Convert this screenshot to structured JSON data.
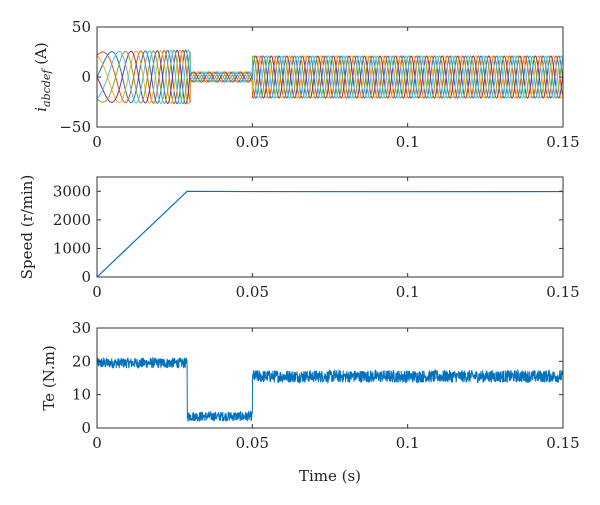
{
  "chart_data": [
    {
      "type": "line",
      "ylabel_main": "i",
      "ylabel_sub": "abcdef",
      "ylabel_unit": " (A)",
      "xlim": [
        0,
        0.15
      ],
      "ylim": [
        -50,
        50
      ],
      "xticks": [
        0,
        0.05,
        0.1,
        0.15
      ],
      "xtick_labels": [
        "0",
        "0.05",
        "0.1",
        "0.15"
      ],
      "yticks": [
        -50,
        0,
        50
      ],
      "ytick_labels": [
        "−50",
        "0",
        "50"
      ],
      "segments": [
        {
          "t0": 0,
          "t1": 0.03,
          "amp_start": 25,
          "amp_end": 27,
          "freq_start": 40,
          "freq_end": 195
        },
        {
          "t0": 0.03,
          "t1": 0.05,
          "amp_start": 5,
          "amp_end": 5,
          "freq_start": 200,
          "freq_end": 200
        },
        {
          "t0": 0.05,
          "t1": 0.15,
          "amp_start": 21,
          "amp_end": 21,
          "freq_start": 200,
          "freq_end": 200
        }
      ],
      "series": [
        {
          "phase_deg": 0,
          "color": "#1f77b4"
        },
        {
          "phase_deg": 60,
          "color": "#d95319"
        },
        {
          "phase_deg": 120,
          "color": "#edb120"
        },
        {
          "phase_deg": 180,
          "color": "#7e2f8e"
        },
        {
          "phase_deg": 240,
          "color": "#77ac30"
        },
        {
          "phase_deg": 300,
          "color": "#4dbeee"
        }
      ]
    },
    {
      "type": "line",
      "ylabel": "Speed (r/min)",
      "xlim": [
        0,
        0.15
      ],
      "ylim": [
        0,
        3500
      ],
      "xticks": [
        0,
        0.05,
        0.1,
        0.15
      ],
      "xtick_labels": [
        "0",
        "0.05",
        "0.1",
        "0.15"
      ],
      "yticks": [
        0,
        1000,
        2000,
        3000
      ],
      "ytick_labels": [
        "0",
        "1000",
        "2000",
        "3000"
      ],
      "color": "#0072bd",
      "x": [
        0,
        0.029,
        0.05,
        0.1,
        0.15
      ],
      "y": [
        0,
        3000,
        2990,
        2985,
        2990
      ]
    },
    {
      "type": "line",
      "ylabel": "Te (N.m)",
      "xlabel": "Time (s)",
      "xlim": [
        0,
        0.15
      ],
      "ylim": [
        0,
        30
      ],
      "xticks": [
        0,
        0.05,
        0.1,
        0.15
      ],
      "xtick_labels": [
        "0",
        "0.05",
        "0.1",
        "0.15"
      ],
      "yticks": [
        0,
        10,
        20,
        30
      ],
      "ytick_labels": [
        "0",
        "10",
        "20",
        "30"
      ],
      "color": "#0072bd",
      "segments": [
        {
          "t0": 0,
          "t1": 0.029,
          "mean": 19.5,
          "ripple": 1.6
        },
        {
          "t0": 0.029,
          "t1": 0.05,
          "mean": 3.5,
          "ripple": 1.5
        },
        {
          "t0": 0.05,
          "t1": 0.15,
          "mean": 15.5,
          "ripple": 1.9
        }
      ]
    }
  ]
}
